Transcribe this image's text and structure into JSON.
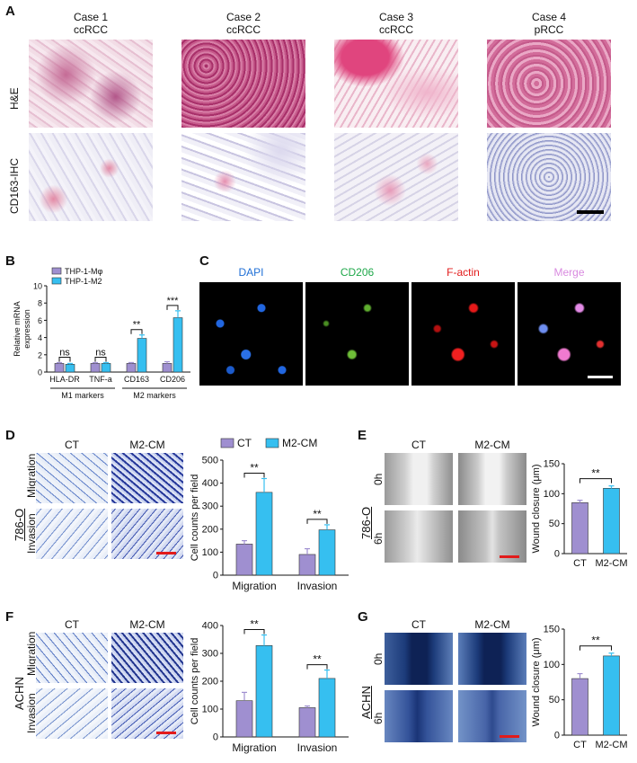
{
  "panels": {
    "A": "A",
    "B": "B",
    "C": "C",
    "D": "D",
    "E": "E",
    "F": "F",
    "G": "G"
  },
  "panelA": {
    "cases": [
      {
        "title": "Case 1",
        "subtype": "ccRCC"
      },
      {
        "title": "Case 2",
        "subtype": "ccRCC"
      },
      {
        "title": "Case 3",
        "subtype": "ccRCC"
      },
      {
        "title": "Case 4",
        "subtype": "pRCC"
      }
    ],
    "rows": [
      "H&E",
      "CD163-IHC"
    ]
  },
  "panelC": {
    "channels": [
      "DAPI",
      "CD206",
      "F-actin",
      "Merge"
    ],
    "colors": [
      "#1f6fd6",
      "#1fa84a",
      "#e21b1b",
      "#d98be0"
    ]
  },
  "panelD": {
    "cell": "786-O",
    "cols": [
      "CT",
      "M2-CM"
    ],
    "rows": [
      "Migration",
      "Invasion"
    ]
  },
  "panelE": {
    "cell": "786-O",
    "cols": [
      "CT",
      "M2-CM"
    ],
    "rows": [
      "0h",
      "6h"
    ]
  },
  "panelF": {
    "cell": "ACHN",
    "cols": [
      "CT",
      "M2-CM"
    ],
    "rows": [
      "Migration",
      "Invasion"
    ]
  },
  "panelG": {
    "cell": "ACHN",
    "cols": [
      "CT",
      "M2-CM"
    ],
    "rows": [
      "0h",
      "6h"
    ]
  },
  "colors": {
    "ct": "#9f8fd0",
    "m2": "#36bff0"
  },
  "chart_data": [
    {
      "id": "B",
      "type": "bar",
      "ylabel": "Relative mRNA\nexpression",
      "ylim": [
        0,
        10
      ],
      "yticks": [
        0,
        2,
        4,
        6,
        8,
        10
      ],
      "categories": [
        "HLA-DR",
        "TNF-a",
        "CD163",
        "CD206"
      ],
      "groups": [
        {
          "label": "M1 markers",
          "span": [
            0,
            1
          ]
        },
        {
          "label": "M2 markers",
          "span": [
            2,
            3
          ]
        }
      ],
      "series": [
        {
          "name": "THP-1-Mφ",
          "values": [
            1.0,
            1.0,
            1.0,
            1.0
          ],
          "errors": [
            0.1,
            0.1,
            0.1,
            0.2
          ]
        },
        {
          "name": "THP-1-M2",
          "values": [
            0.9,
            1.0,
            3.9,
            6.3
          ],
          "errors": [
            0.1,
            0.1,
            0.4,
            0.8
          ]
        }
      ],
      "significance": [
        "ns",
        "ns",
        "**",
        "***"
      ],
      "legend": "top-left"
    },
    {
      "id": "D",
      "type": "bar",
      "ylabel": "Cell counts per field",
      "ylim": [
        0,
        500
      ],
      "yticks": [
        0,
        100,
        200,
        300,
        400,
        500
      ],
      "categories": [
        "Migration",
        "Invasion"
      ],
      "series": [
        {
          "name": "CT",
          "values": [
            135,
            90
          ],
          "errors": [
            15,
            25
          ]
        },
        {
          "name": "M2-CM",
          "values": [
            360,
            197
          ],
          "errors": [
            60,
            22
          ]
        }
      ],
      "significance": [
        "**",
        "**"
      ],
      "legend": "top"
    },
    {
      "id": "E",
      "type": "bar",
      "ylabel": "Wound closure (μm)",
      "ylim": [
        0,
        150
      ],
      "yticks": [
        0,
        50,
        100,
        150
      ],
      "categories": [
        "CT",
        "M2-CM"
      ],
      "series": [
        {
          "name": "",
          "values": [
            85,
            109
          ],
          "errors": [
            4,
            4
          ]
        }
      ],
      "significance": [
        "**"
      ]
    },
    {
      "id": "F",
      "type": "bar",
      "ylabel": "Cell counts per field",
      "ylim": [
        0,
        400
      ],
      "yticks": [
        0,
        100,
        200,
        300,
        400
      ],
      "categories": [
        "Migration",
        "Invasion"
      ],
      "series": [
        {
          "name": "CT",
          "values": [
            130,
            105
          ],
          "errors": [
            30,
            6
          ]
        },
        {
          "name": "M2-CM",
          "values": [
            328,
            210
          ],
          "errors": [
            38,
            30
          ]
        }
      ],
      "significance": [
        "**",
        "**"
      ]
    },
    {
      "id": "G",
      "type": "bar",
      "ylabel": "Wound closure (μm)",
      "ylim": [
        0,
        150
      ],
      "yticks": [
        0,
        50,
        100,
        150
      ],
      "categories": [
        "CT",
        "M2-CM"
      ],
      "series": [
        {
          "name": "",
          "values": [
            80,
            112
          ],
          "errors": [
            7,
            4
          ]
        }
      ],
      "significance": [
        "**"
      ]
    }
  ]
}
